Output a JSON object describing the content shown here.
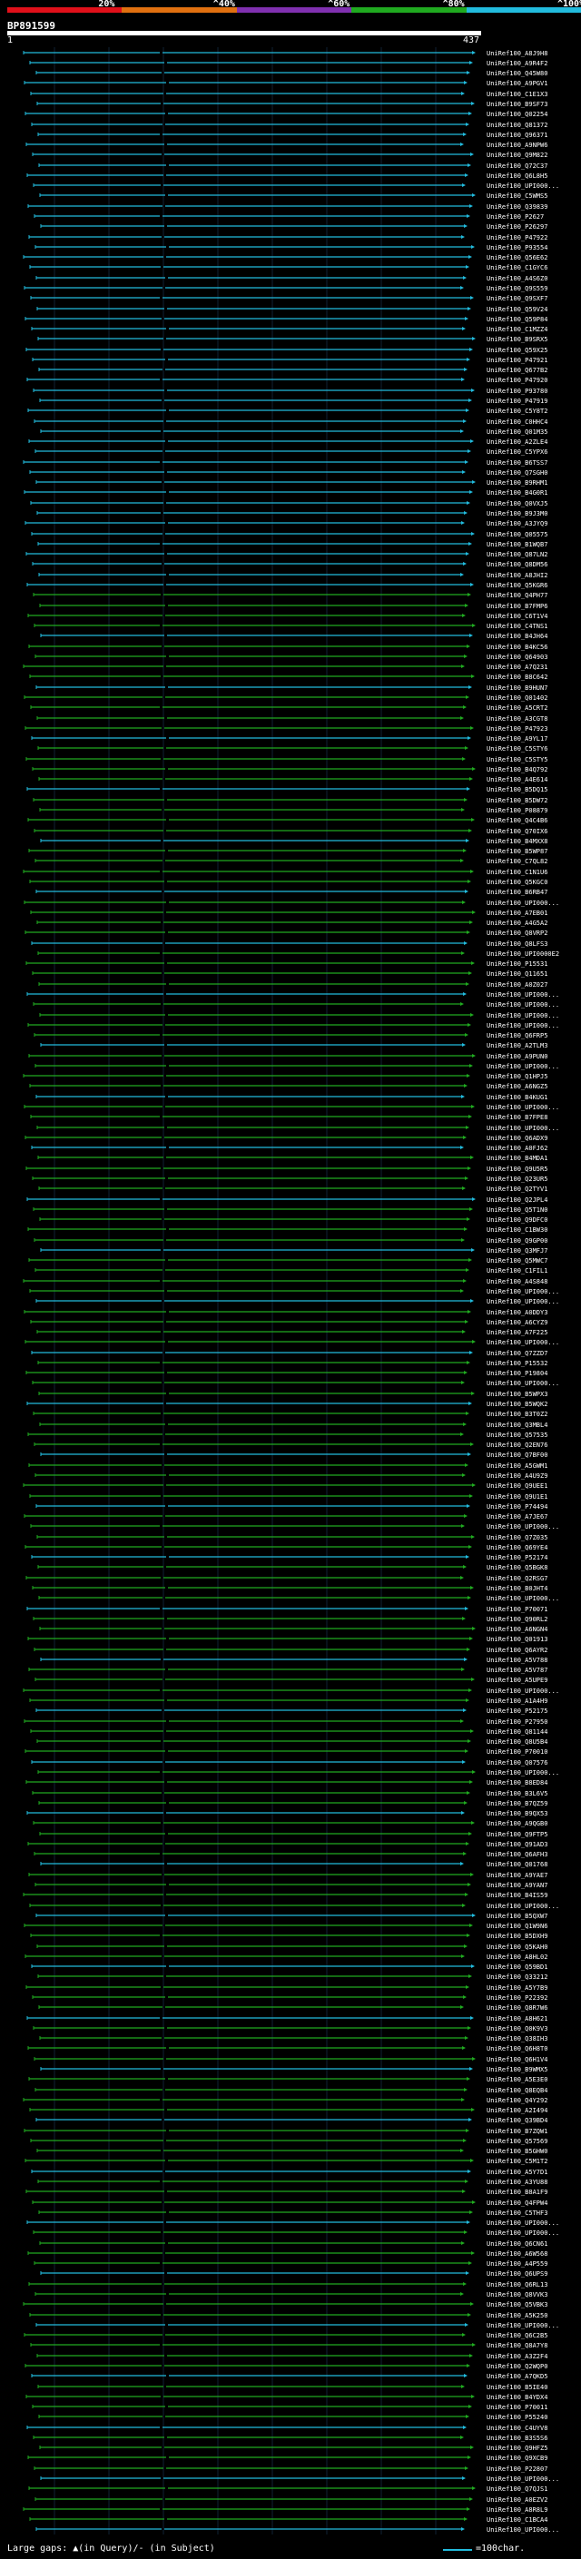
{
  "legend": {
    "bands": [
      {
        "label": "20%",
        "color": "#e0101a"
      },
      {
        "label": "^40%",
        "color": "#e07010"
      },
      {
        "label": "^60%",
        "color": "#8030b0"
      },
      {
        "label": "^80%",
        "color": "#20aa20"
      },
      {
        "label": "^100%",
        "color": "#22bbdd"
      }
    ]
  },
  "query": {
    "id": "BP891599",
    "start": "1",
    "end": "437"
  },
  "hits": [
    "UniRef100_A8J9H8",
    "UniRef100_A9R4F2",
    "UniRef100_Q45W80",
    "UniRef100_A9PGV1",
    "UniRef100_C1E1X3",
    "UniRef100_B9SF73",
    "UniRef100_Q02254",
    "UniRef100_Q81372",
    "UniRef100_Q96371",
    "UniRef100_A9NPW6",
    "UniRef100_Q9M822",
    "UniRef100_Q72C37",
    "UniRef100_Q6L8H5",
    "UniRef100_UPI000...",
    "UniRef100_C5WMS5",
    "UniRef100_Q39839",
    "UniRef100_P2627",
    "UniRef100_P26297",
    "UniRef100_P47922",
    "UniRef100_P93554",
    "UniRef100_Q56E62",
    "UniRef100_C1GYC6",
    "UniRef100_A4S6Z0",
    "UniRef100_Q9S559",
    "UniRef100_Q9SXF7",
    "UniRef100_Q59V24",
    "UniRef100_Q59P84",
    "UniRef100_C1MZZ4",
    "UniRef100_B9SRX5",
    "UniRef100_Q59X25",
    "UniRef100_P47921",
    "UniRef100_Q677B2",
    "UniRef100_P47920",
    "UniRef100_P93780",
    "UniRef100_P47919",
    "UniRef100_C5Y8T2",
    "UniRef100_C0HHC4",
    "UniRef100_Q01M35",
    "UniRef100_A2ZLE4",
    "UniRef100_C5YPX6",
    "UniRef100_B6TSS7",
    "UniRef100_Q7SGH0",
    "UniRef100_B9RHM1",
    "UniRef100_B4G0R1",
    "UniRef100_Q0VXJ5",
    "UniRef100_B9J3M0",
    "UniRef100_A3JYQ9",
    "UniRef100_Q05575",
    "UniRef100_B1WQB7",
    "UniRef100_Q87LN2",
    "UniRef100_Q8DM56",
    "UniRef100_A8JHI2",
    "UniRef100_Q5KGR6",
    "UniRef100_Q4PH77",
    "UniRef100_B7FMP6",
    "UniRef100_C6T1V4",
    "UniRef100_C4TNS1",
    "UniRef100_B4JH64",
    "UniRef100_B4KC56",
    "UniRef100_Q64903",
    "UniRef100_A7Q231",
    "UniRef100_B8C642",
    "UniRef100_B9HUN7",
    "UniRef100_Q01402",
    "UniRef100_A5CRT2",
    "UniRef100_A3CGT8",
    "UniRef100_P47923",
    "UniRef100_A9YL17",
    "UniRef100_C5STY6",
    "UniRef100_C5STY5",
    "UniRef100_B4Q792",
    "UniRef100_A4E614",
    "UniRef100_B5DQ15",
    "UniRef100_B5DW72",
    "UniRef100_P08879",
    "UniRef100_Q4C4B6",
    "UniRef100_Q70IX6",
    "UniRef100_B4MXX8",
    "UniRef100_B5WP87",
    "UniRef100_C7QL82",
    "UniRef100_C1N1U6",
    "UniRef100_Q5KGC0",
    "UniRef100_B6RB47",
    "UniRef100_UPI000...",
    "UniRef100_A7EB01",
    "UniRef100_A4G5A2",
    "UniRef100_Q8VRP2",
    "UniRef100_Q8LFS3",
    "UniRef100_UPI0000E2",
    "UniRef100_P15531",
    "UniRef100_Q11651",
    "UniRef100_A0Z027",
    "UniRef100_UPI000...",
    "UniRef100_UPI000...",
    "UniRef100_UPI000...",
    "UniRef100_UPI000...",
    "UniRef100_Q6FRP5",
    "UniRef100_A2TLM3",
    "UniRef100_A9PUN0",
    "UniRef100_UPI000...",
    "UniRef100_Q1HPJ5",
    "UniRef100_A6NGZ5",
    "UniRef100_B4KUG1",
    "UniRef100_UPI000...",
    "UniRef100_B7FPE8",
    "UniRef100_UPI000...",
    "UniRef100_Q6ADX9",
    "UniRef100_A0FJ62",
    "UniRef100_B4MDA1",
    "UniRef100_Q9U5R5",
    "UniRef100_Q23UR5",
    "UniRef100_Q2TYV1",
    "UniRef100_Q2JPL4",
    "UniRef100_Q5T1N0",
    "UniRef100_Q9DFC0",
    "UniRef100_C1BW30",
    "UniRef100_Q9GP00",
    "UniRef100_Q3MFJ7",
    "UniRef100_Q5MWC7",
    "UniRef100_C1FIL1",
    "UniRef100_A4S848",
    "UniRef100_UPI000...",
    "UniRef100_UPI000...",
    "UniRef100_A0DDY3",
    "UniRef100_A6CYZ9",
    "UniRef100_A7F225",
    "UniRef100_UPI000...",
    "UniRef100_Q7ZZD7",
    "UniRef100_P15532",
    "UniRef100_P19804",
    "UniRef100_UPI000...",
    "UniRef100_B5WPX3",
    "UniRef100_B5WQK2",
    "UniRef100_B3T0Z2",
    "UniRef100_Q3MBL4",
    "UniRef100_Q57535",
    "UniRef100_Q2EN76",
    "UniRef100_Q7BF00",
    "UniRef100_A5GWM1",
    "UniRef100_A4U9Z9",
    "UniRef100_Q9UEE1",
    "UniRef100_Q9U1E1",
    "UniRef100_P74494",
    "UniRef100_A7JE67",
    "UniRef100_UPI000...",
    "UniRef100_Q7Z035",
    "UniRef100_Q69YE4",
    "UniRef100_P52174",
    "UniRef100_Q5BGK8",
    "UniRef100_Q2RSG7",
    "UniRef100_B0JHT4",
    "UniRef100_UPI000...",
    "UniRef100_P70071",
    "UniRef100_Q90RL2",
    "UniRef100_A6NGN4",
    "UniRef100_Q01913",
    "UniRef100_Q6AYR2",
    "UniRef100_A5V788",
    "UniRef100_A5V787",
    "UniRef100_A5UPE9",
    "UniRef100_UPI000...",
    "UniRef100_A1A4H9",
    "UniRef100_P52175",
    "UniRef100_P27950",
    "UniRef100_Q81144",
    "UniRef100_Q8U5B4",
    "UniRef100_P70010",
    "UniRef100_Q07576",
    "UniRef100_UPI000...",
    "UniRef100_B8ED84",
    "UniRef100_B3L6V5",
    "UniRef100_B7QZ59",
    "UniRef100_B9QX53",
    "UniRef100_A9QGB0",
    "UniRef100_Q9FTP5",
    "UniRef100_Q91AD3",
    "UniRef100_Q6AFH3",
    "UniRef100_Q01768",
    "UniRef100_A9YAE7",
    "UniRef100_A9YAN7",
    "UniRef100_B4IS59",
    "UniRef100_UPI000...",
    "UniRef100_B5QXW7",
    "UniRef100_Q1W9N6",
    "UniRef100_B5DXH9",
    "UniRef100_Q5KAH0",
    "UniRef100_A8HL02",
    "UniRef100_Q59BD1",
    "UniRef100_Q33212",
    "UniRef100_A5Y7B9",
    "UniRef100_P22392",
    "UniRef100_Q8R7W6",
    "UniRef100_A8H621",
    "UniRef100_Q0K9V3",
    "UniRef100_Q38IH3",
    "UniRef100_Q6H8T0",
    "UniRef100_Q6H1V4",
    "UniRef100_B9WMX5",
    "UniRef100_A5E3E0",
    "UniRef100_Q8EQB4",
    "UniRef100_Q4Y292",
    "UniRef100_A2I494",
    "UniRef100_Q39BD4",
    "UniRef100_B7ZQW1",
    "UniRef100_Q57569",
    "UniRef100_B5GHW0",
    "UniRef100_C5M1T2",
    "UniRef100_A5Y7D1",
    "UniRef100_A3YU88",
    "UniRef100_B8A1F9",
    "UniRef100_Q4FPW4",
    "UniRef100_C5THF3",
    "UniRef100_UPI000...",
    "UniRef100_UPI000...",
    "UniRef100_Q6CN61",
    "UniRef100_A6W568",
    "UniRef100_A4P559",
    "UniRef100_Q6UPS9",
    "UniRef100_Q6RL13",
    "UniRef100_Q8VVK3",
    "UniRef100_Q5VBK3",
    "UniRef100_A5K250",
    "UniRef100_UPI000...",
    "UniRef100_Q6C2B5",
    "UniRef100_Q8A7Y8",
    "UniRef100_A3Z2F4",
    "UniRef100_Q2WQP0",
    "UniRef100_A7QKD5",
    "UniRef100_B5IE40",
    "UniRef100_B4YDX4",
    "UniRef100_P70011",
    "UniRef100_P55240",
    "UniRef100_C4UYV8",
    "UniRef100_B3S5S6",
    "UniRef100_Q9HFZ5",
    "UniRef100_Q9XCB9",
    "UniRef100_P22807",
    "UniRef100_UPI000...",
    "UniRef100_Q7QJS1",
    "UniRef100_A0EZV2",
    "UniRef100_A8R8L9",
    "UniRef100_C1BCA4",
    "UniRef100_UPI000..."
  ],
  "footer": {
    "text": "Large gaps: ▲(in Query)/- (in Subject)",
    "ruler_label": "=100char."
  }
}
